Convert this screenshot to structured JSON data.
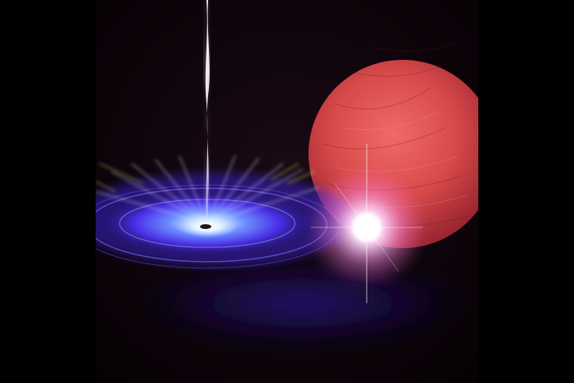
{
  "image": {
    "description_none": "",
    "subjects": [
      {
        "name": "accretion-disk",
        "color": "#4a3cff"
      },
      {
        "name": "relativistic-jet",
        "color": "#f4f0ff"
      },
      {
        "name": "black-hole-core",
        "color": "#ffffff"
      },
      {
        "name": "red-companion-star",
        "color": "#d94a4a"
      },
      {
        "name": "flare-glow",
        "color": "#ffe6ff"
      }
    ],
    "background_color": "#0b0206",
    "letterbox_color": "#000000"
  }
}
